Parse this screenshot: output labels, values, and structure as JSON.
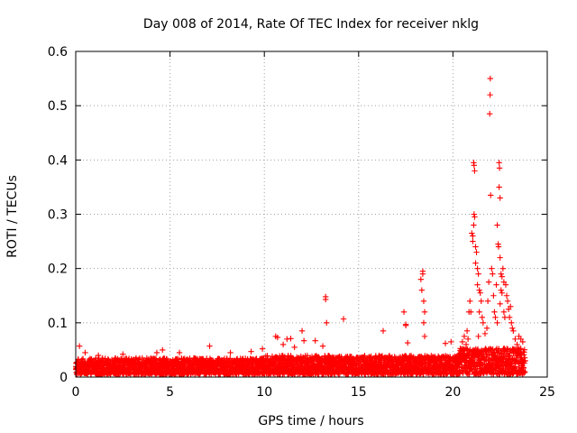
{
  "chart_data": {
    "type": "scatter",
    "title": "Day 008 of 2014, Rate Of TEC Index for receiver nklg",
    "xlabel": "GPS time / hours",
    "ylabel": "ROTI / TECUs",
    "xlim": [
      0,
      25
    ],
    "ylim": [
      0,
      0.6
    ],
    "xticks": [
      0,
      5,
      10,
      15,
      20,
      25
    ],
    "xtick_labels": [
      "0",
      "5",
      "10",
      "15",
      "20",
      "25"
    ],
    "yticks": [
      0,
      0.1,
      0.2,
      0.3,
      0.4,
      0.5,
      0.6
    ],
    "ytick_labels": [
      "0",
      "0.1",
      "0.2",
      "0.3",
      "0.4",
      "0.5",
      "0.6"
    ],
    "grid": true,
    "marker": "+",
    "color": "#ff0000",
    "baseline_band": {
      "x_range": [
        0,
        23.8
      ],
      "typical_min": 0.005,
      "typical_max": 0.035,
      "note": "dense continuous band of points along the bottom"
    },
    "series": [
      {
        "name": "ROTI",
        "points": [
          [
            0.2,
            0.057
          ],
          [
            0.5,
            0.045
          ],
          [
            1.2,
            0.04
          ],
          [
            2.5,
            0.042
          ],
          [
            3.2,
            0.035
          ],
          [
            4.3,
            0.045
          ],
          [
            4.6,
            0.05
          ],
          [
            5.5,
            0.045
          ],
          [
            7.1,
            0.057
          ],
          [
            8.2,
            0.045
          ],
          [
            9.3,
            0.047
          ],
          [
            9.9,
            0.052
          ],
          [
            10.6,
            0.075
          ],
          [
            10.7,
            0.073
          ],
          [
            11.0,
            0.06
          ],
          [
            11.2,
            0.07
          ],
          [
            11.4,
            0.071
          ],
          [
            11.6,
            0.055
          ],
          [
            12.0,
            0.085
          ],
          [
            12.1,
            0.067
          ],
          [
            12.7,
            0.067
          ],
          [
            13.1,
            0.057
          ],
          [
            13.25,
            0.148
          ],
          [
            13.25,
            0.143
          ],
          [
            13.3,
            0.1
          ],
          [
            14.2,
            0.107
          ],
          [
            16.3,
            0.085
          ],
          [
            17.4,
            0.12
          ],
          [
            17.5,
            0.097
          ],
          [
            17.5,
            0.095
          ],
          [
            17.6,
            0.063
          ],
          [
            18.3,
            0.18
          ],
          [
            18.4,
            0.19
          ],
          [
            18.4,
            0.195
          ],
          [
            18.35,
            0.16
          ],
          [
            18.45,
            0.14
          ],
          [
            18.5,
            0.12
          ],
          [
            18.45,
            0.1
          ],
          [
            18.5,
            0.075
          ],
          [
            19.6,
            0.062
          ],
          [
            19.9,
            0.065
          ],
          [
            20.5,
            0.065
          ],
          [
            20.6,
            0.075
          ],
          [
            20.7,
            0.06
          ],
          [
            20.75,
            0.085
          ],
          [
            20.8,
            0.07
          ],
          [
            20.85,
            0.12
          ],
          [
            20.9,
            0.14
          ],
          [
            20.95,
            0.12
          ],
          [
            21.0,
            0.265
          ],
          [
            21.05,
            0.26
          ],
          [
            21.05,
            0.25
          ],
          [
            21.1,
            0.395
          ],
          [
            21.12,
            0.39
          ],
          [
            21.15,
            0.38
          ],
          [
            21.12,
            0.3
          ],
          [
            21.15,
            0.295
          ],
          [
            21.1,
            0.28
          ],
          [
            21.2,
            0.24
          ],
          [
            21.25,
            0.23
          ],
          [
            21.2,
            0.21
          ],
          [
            21.3,
            0.2
          ],
          [
            21.35,
            0.19
          ],
          [
            21.3,
            0.17
          ],
          [
            21.4,
            0.16
          ],
          [
            21.45,
            0.155
          ],
          [
            21.5,
            0.14
          ],
          [
            21.4,
            0.12
          ],
          [
            21.55,
            0.11
          ],
          [
            21.6,
            0.1
          ],
          [
            21.35,
            0.075
          ],
          [
            21.7,
            0.08
          ],
          [
            21.8,
            0.09
          ],
          [
            21.85,
            0.14
          ],
          [
            21.9,
            0.175
          ],
          [
            21.95,
            0.485
          ],
          [
            21.97,
            0.52
          ],
          [
            21.98,
            0.55
          ],
          [
            22.0,
            0.335
          ],
          [
            22.05,
            0.2
          ],
          [
            22.1,
            0.19
          ],
          [
            22.15,
            0.15
          ],
          [
            22.2,
            0.12
          ],
          [
            22.25,
            0.11
          ],
          [
            22.3,
            0.17
          ],
          [
            22.35,
            0.1
          ],
          [
            22.35,
            0.28
          ],
          [
            22.4,
            0.245
          ],
          [
            22.42,
            0.24
          ],
          [
            22.45,
            0.395
          ],
          [
            22.47,
            0.385
          ],
          [
            22.45,
            0.35
          ],
          [
            22.5,
            0.33
          ],
          [
            22.5,
            0.22
          ],
          [
            22.55,
            0.19
          ],
          [
            22.6,
            0.185
          ],
          [
            22.55,
            0.16
          ],
          [
            22.6,
            0.155
          ],
          [
            22.5,
            0.135
          ],
          [
            22.65,
            0.2
          ],
          [
            22.7,
            0.175
          ],
          [
            22.7,
            0.12
          ],
          [
            22.75,
            0.11
          ],
          [
            22.8,
            0.17
          ],
          [
            22.85,
            0.15
          ],
          [
            22.9,
            0.14
          ],
          [
            22.95,
            0.125
          ],
          [
            23.0,
            0.11
          ],
          [
            23.05,
            0.13
          ],
          [
            23.1,
            0.1
          ],
          [
            23.15,
            0.09
          ],
          [
            23.2,
            0.085
          ],
          [
            23.3,
            0.07
          ],
          [
            23.4,
            0.06
          ],
          [
            23.5,
            0.075
          ],
          [
            23.6,
            0.07
          ],
          [
            23.7,
            0.065
          ]
        ]
      }
    ]
  }
}
